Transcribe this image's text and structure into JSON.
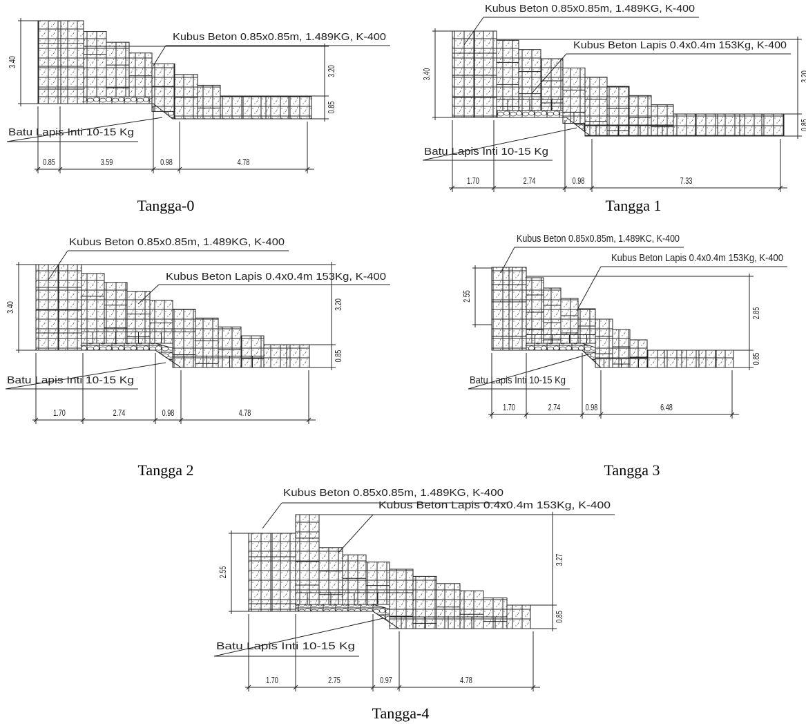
{
  "panels": [
    {
      "caption": "Tangga-0",
      "kubus_beton": "Kubus Beton 0.85x0.85m, 1.489KG, K-400",
      "batu_inti": "Batu Lapis Inti 10-15 Kg",
      "height_left": "3.40",
      "height_right": "3.20",
      "height_base": "0.85",
      "widths": [
        "0.85",
        "3.59",
        "0.98",
        "4.78"
      ]
    },
    {
      "caption": "Tangga 1",
      "kubus_beton": "Kubus Beton 0.85x0.85m, 1.489KG, K-400",
      "kubus_lapis": "Kubus Beton Lapis 0.4x0.4m 153Kg, K-400",
      "batu_inti": "Batu Lapis Inti 10-15 Kg",
      "height_left": "3.40",
      "height_right": "3.20",
      "height_base": "0.85",
      "widths": [
        "1.70",
        "2.74",
        "0.98",
        "7.33"
      ]
    },
    {
      "caption": "Tangga 2",
      "kubus_beton": "Kubus Beton 0.85x0.85m, 1.489KG, K-400",
      "kubus_lapis": "Kubus Beton Lapis 0.4x0.4m 153Kg, K-400",
      "batu_inti": "Batu Lapis Inti 10-15 Kg",
      "height_left": "3.40",
      "height_right": "3.20",
      "height_base": "0.85",
      "widths": [
        "1.70",
        "2.74",
        "0.98",
        "4.78"
      ]
    },
    {
      "caption": "Tangga 3",
      "kubus_beton": "Kubus Beton 0.85x0.85m, 1.489KC, K-400",
      "kubus_lapis": "Kubus Beton Lapis 0.4x0.4m 153Kg, K-400",
      "batu_inti": "Batu Lapis Inti 10-15 Kg",
      "height_left": "2.55",
      "height_right": "2.85",
      "height_base": "0.85",
      "widths": [
        "1.70",
        "2.74",
        "0.98",
        "6.48"
      ]
    },
    {
      "caption": "Tangga-4",
      "kubus_beton": "Kubus Beton 0.85x0.85m, 1.489KG, K-400",
      "kubus_lapis": "Kubus Beton Lapis 0.4x0.4m 153Kg, K-400",
      "batu_inti": "Batu Lapis Inti 10-15 Kg",
      "height_left": "2.55",
      "height_right": "3.27",
      "height_base": "0.85",
      "widths": [
        "1.70",
        "2.75",
        "0.97",
        "4.78"
      ]
    }
  ]
}
